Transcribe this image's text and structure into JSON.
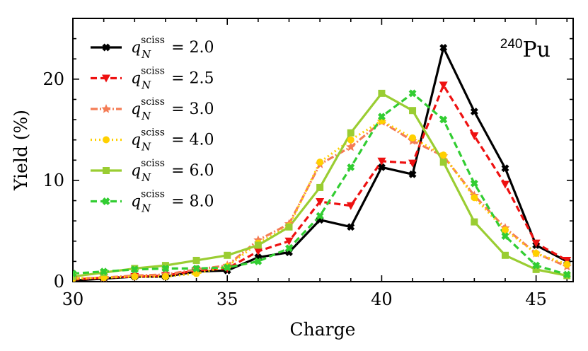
{
  "chart_data": {
    "type": "line",
    "title": "",
    "annotation": "240Pu",
    "annotation_mass": "240",
    "annotation_element": "Pu",
    "xlabel": "Charge",
    "ylabel": "Yield (%)",
    "xlim": [
      30,
      46.2
    ],
    "ylim": [
      0,
      26
    ],
    "xticks": [
      30,
      35,
      40,
      45
    ],
    "yticks": [
      0,
      10,
      20
    ],
    "legend_position": "top-left",
    "x": [
      30,
      31,
      32,
      33,
      34,
      35,
      36,
      37,
      38,
      39,
      40,
      41,
      42,
      43,
      44,
      45,
      46
    ],
    "series": [
      {
        "name": "q_N^sciss = 2.0",
        "label_value": "2.0",
        "color": "#000000",
        "dash": "",
        "marker": "cross",
        "values": [
          0.1,
          0.3,
          0.5,
          0.5,
          1.0,
          1.1,
          2.4,
          2.9,
          6.1,
          5.4,
          11.3,
          10.6,
          23.1,
          16.8,
          11.2,
          3.6,
          2.0
        ]
      },
      {
        "name": "q_N^sciss = 2.5",
        "label_value": "2.5",
        "color": "#ee1111",
        "dash": "9,5",
        "marker": "triangle-down",
        "values": [
          0.2,
          0.4,
          0.5,
          0.6,
          1.1,
          1.3,
          3.0,
          4.0,
          7.9,
          7.5,
          11.9,
          11.7,
          19.4,
          14.4,
          9.6,
          3.8,
          2.1
        ]
      },
      {
        "name": "q_N^sciss = 3.0",
        "label_value": "3.0",
        "color": "#f47c55",
        "dash": "10,3,2,3",
        "marker": "star",
        "values": [
          0.3,
          0.4,
          0.6,
          0.7,
          1.2,
          1.6,
          4.1,
          5.7,
          11.6,
          13.3,
          15.8,
          13.9,
          12.4,
          8.5,
          5.3,
          2.8,
          1.5
        ]
      },
      {
        "name": "q_N^sciss = 4.0",
        "label_value": "4.0",
        "color": "#ffd000",
        "dash": "2,4",
        "marker": "circle",
        "values": [
          0.3,
          0.4,
          0.5,
          0.5,
          0.8,
          1.5,
          3.8,
          5.5,
          11.8,
          14.0,
          15.9,
          14.2,
          12.5,
          8.3,
          5.1,
          2.8,
          1.7
        ]
      },
      {
        "name": "q_N^sciss = 6.0",
        "label_value": "6.0",
        "color": "#9acd32",
        "dash": "",
        "marker": "square",
        "values": [
          0.5,
          0.9,
          1.3,
          1.6,
          2.1,
          2.6,
          3.6,
          5.4,
          9.3,
          14.7,
          18.6,
          16.9,
          11.8,
          5.9,
          2.6,
          1.2,
          0.6
        ]
      },
      {
        "name": "q_N^sciss = 8.0",
        "label_value": "8.0",
        "color": "#32cd32",
        "dash": "9,5",
        "marker": "x",
        "values": [
          0.8,
          1.0,
          1.2,
          1.3,
          1.3,
          1.4,
          2.0,
          3.3,
          6.5,
          11.3,
          16.3,
          18.6,
          16.0,
          9.7,
          4.5,
          1.6,
          0.7
        ]
      }
    ]
  }
}
